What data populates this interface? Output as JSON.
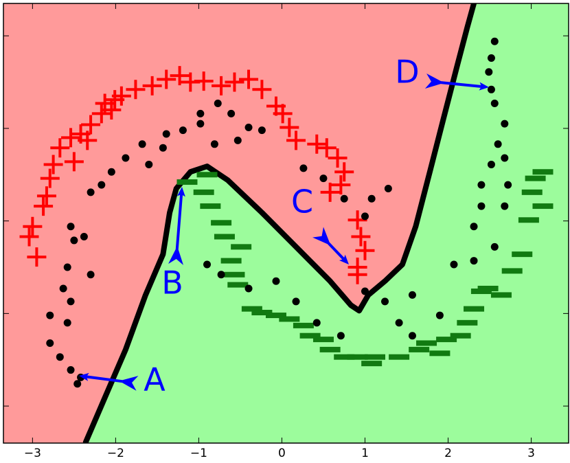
{
  "chart_data": {
    "type": "scatter",
    "xlim": [
      -3.35,
      3.45
    ],
    "ylim": [
      -2.4,
      2.35
    ],
    "xticks": [
      {
        "value": -3,
        "label": "−3"
      },
      {
        "value": -2,
        "label": "−2"
      },
      {
        "value": -1,
        "label": "−1"
      },
      0,
      1,
      2,
      3
    ],
    "yticks": [
      -2,
      -1,
      0,
      1,
      2
    ],
    "region_colors": [
      "#ff9a9a",
      "#9cfc9c"
    ],
    "boundary": {
      "color": "#000000",
      "x": [
        -2.36,
        -2.13,
        -1.88,
        -1.64,
        -1.43,
        -1.35,
        -1.27,
        -1.1,
        -0.9,
        -0.65,
        -0.24,
        0.17,
        0.58,
        0.83,
        0.93,
        1.04,
        1.24,
        1.45,
        1.61,
        1.78,
        1.94,
        2.11,
        2.23,
        2.31
      ],
      "y": [
        -2.39,
        -1.91,
        -1.39,
        -0.8,
        -0.36,
        0.09,
        0.35,
        0.53,
        0.59,
        0.44,
        0.09,
        -0.28,
        -0.65,
        -0.91,
        -0.97,
        -0.8,
        -0.65,
        -0.47,
        -0.06,
        0.53,
        1.09,
        1.68,
        2.09,
        2.35
      ]
    },
    "series": [
      {
        "marker": "plus",
        "color": "#ff0000",
        "x": [
          -3.0,
          -3.04,
          -2.95,
          -2.87,
          -2.83,
          -2.79,
          -2.75,
          -2.67,
          -2.54,
          -2.42,
          -2.3,
          -2.17,
          -2.13,
          -2.01,
          -1.93,
          -1.76,
          -1.56,
          -1.39,
          -1.23,
          -1.1,
          -0.94,
          -0.73,
          -0.57,
          -0.4,
          -0.24,
          -0.07,
          0.01,
          0.09,
          0.17,
          0.42,
          0.54,
          0.67,
          0.75,
          0.71,
          0.58,
          0.91,
          0.95,
          1.0,
          0.91,
          0.91,
          -2.05,
          -2.34,
          -2.5
        ],
        "y": [
          -0.06,
          -0.17,
          -0.39,
          0.16,
          0.27,
          0.46,
          0.61,
          0.79,
          0.9,
          0.94,
          1.04,
          1.16,
          1.27,
          1.31,
          1.35,
          1.42,
          1.46,
          1.53,
          1.57,
          1.5,
          1.51,
          1.46,
          1.5,
          1.53,
          1.42,
          1.24,
          1.16,
          1.01,
          0.87,
          0.83,
          0.79,
          0.68,
          0.53,
          0.39,
          0.31,
          0.01,
          -0.17,
          -0.32,
          -0.5,
          -0.58,
          1.2,
          0.87,
          0.64
        ]
      },
      {
        "marker": "dash",
        "color": "#117a11",
        "x": [
          -1.14,
          -0.9,
          -0.94,
          -0.86,
          -0.73,
          -0.69,
          -0.49,
          -0.61,
          -0.57,
          -0.53,
          -0.36,
          -0.24,
          -0.07,
          0.09,
          0.26,
          0.34,
          0.5,
          0.58,
          0.75,
          0.91,
          1.12,
          1.41,
          1.65,
          1.74,
          1.98,
          2.15,
          2.23,
          2.31,
          2.48,
          2.64,
          2.77,
          2.89,
          2.97,
          3.14,
          3.01,
          3.05,
          3.14,
          2.4,
          1.9,
          1.08
        ],
        "y": [
          0.42,
          0.5,
          0.31,
          0.16,
          -0.02,
          -0.17,
          -0.28,
          -0.43,
          -0.58,
          -0.69,
          -0.95,
          -0.99,
          -1.02,
          -1.06,
          -1.13,
          -1.24,
          -1.28,
          -1.39,
          -1.47,
          -1.47,
          -1.47,
          -1.47,
          -1.39,
          -1.32,
          -1.28,
          -1.24,
          -1.1,
          -0.95,
          -0.73,
          -0.8,
          -0.54,
          -0.36,
          0.01,
          0.16,
          0.31,
          0.46,
          0.53,
          -0.76,
          -1.43,
          -1.54
        ]
      },
      {
        "marker": "dot",
        "color": "#000000",
        "x": [
          -2.79,
          -2.79,
          -2.67,
          -2.54,
          -2.46,
          -2.42,
          -2.58,
          -2.54,
          -2.63,
          -2.58,
          -2.5,
          -2.38,
          -2.54,
          -2.3,
          -2.17,
          -2.05,
          -1.88,
          -1.68,
          -1.6,
          -1.43,
          -1.39,
          -1.19,
          -0.98,
          -0.98,
          -0.77,
          -0.61,
          -0.4,
          -0.53,
          -0.81,
          -0.24,
          0.26,
          0.5,
          0.75,
          1.08,
          1.28,
          1.0,
          -0.9,
          -0.73,
          -0.4,
          -0.07,
          0.17,
          0.42,
          0.71,
          1.0,
          1.24,
          1.57,
          1.41,
          1.57,
          1.9,
          2.07,
          2.31,
          2.31,
          2.4,
          2.4,
          2.52,
          2.6,
          2.68,
          2.56,
          2.52,
          2.49,
          2.52,
          2.56,
          2.68,
          2.72,
          2.68,
          2.56,
          -2.3
        ],
        "y": [
          -1.02,
          -1.32,
          -1.47,
          -1.61,
          -1.76,
          -1.69,
          -1.1,
          -0.87,
          -0.73,
          -0.5,
          -0.21,
          -0.17,
          -0.06,
          0.31,
          0.39,
          0.53,
          0.68,
          0.83,
          0.61,
          0.79,
          0.94,
          0.98,
          1.05,
          1.16,
          1.27,
          1.16,
          1.01,
          0.87,
          0.83,
          0.98,
          0.57,
          0.46,
          0.24,
          0.24,
          0.35,
          0.05,
          -0.47,
          -0.58,
          -0.73,
          -0.65,
          -0.87,
          -1.1,
          -1.24,
          -0.76,
          -0.87,
          -0.8,
          -1.1,
          -1.24,
          -1.02,
          -0.47,
          -0.43,
          -0.06,
          0.16,
          0.39,
          0.61,
          0.83,
          1.05,
          1.27,
          1.42,
          1.61,
          1.76,
          1.94,
          0.68,
          0.39,
          0.16,
          -0.28,
          -0.58
        ]
      }
    ],
    "annotations": [
      "A",
      "B",
      "C",
      "D"
    ],
    "annotation_color": "#0000ff"
  }
}
